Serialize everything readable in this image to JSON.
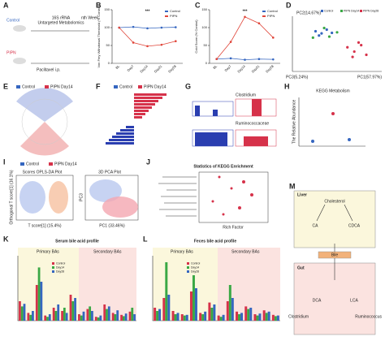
{
  "A": {
    "label": "A",
    "control": "Control",
    "pipn": "PIPN",
    "seq": "16S rRNA",
    "metab": "Untargeted Metabolomics",
    "week": "nth Week",
    "inj": "Paclitaxel i.p."
  },
  "B": {
    "label": "B",
    "ylabel": "Von Frey Withdrawal Threshold (% Control)",
    "categories": [
      "BL",
      "Day7",
      "Day14",
      "Day21",
      "Day28"
    ],
    "series": [
      {
        "name": "Control",
        "color": "#3566c0",
        "values": [
          100,
          102,
          98,
          100,
          101
        ]
      },
      {
        "name": "PIPN",
        "color": "#e0463a",
        "values": [
          100,
          58,
          48,
          52,
          62
        ]
      }
    ],
    "ylim": [
      0,
      150
    ],
    "yticks": [
      0,
      50,
      100,
      150
    ],
    "annotation": "***"
  },
  "C": {
    "label": "C",
    "ylabel": "Cold Score (% Control)",
    "categories": [
      "BL",
      "Day7",
      "Day14",
      "Day21",
      "Day28"
    ],
    "series": [
      {
        "name": "Control",
        "color": "#3566c0",
        "values": [
          12,
          14,
          10,
          12,
          11
        ]
      },
      {
        "name": "PIPN",
        "color": "#e0463a",
        "values": [
          12,
          60,
          130,
          112,
          72
        ]
      }
    ],
    "ylim": [
      0,
      150
    ],
    "yticks": [
      0,
      50,
      100,
      150
    ],
    "annotation": "***"
  },
  "D": {
    "label": "D",
    "pc1": "PC1(57.97%)",
    "pc2": "PC2(14.67%)",
    "pc3": "PC3(5.24%)",
    "xlim": [
      0,
      10
    ],
    "ylim": [
      0,
      10
    ],
    "series": [
      {
        "name": "Control",
        "color": "#3566c0",
        "x": [
          2.5,
          3.2,
          3.8,
          4.4,
          2.9
        ],
        "y": [
          7.2,
          6.8,
          7.5,
          6.9,
          6.4
        ]
      },
      {
        "name": "PIPN Day14",
        "color": "#3aa845",
        "x": [
          3.5,
          4.1,
          5.0,
          2.2
        ],
        "y": [
          7.8,
          6.2,
          7.0,
          6.0
        ]
      },
      {
        "name": "PIPN Day28",
        "color": "#d6324a",
        "x": [
          6.2,
          7.0,
          7.8,
          8.4,
          6.8,
          7.5
        ],
        "y": [
          4.2,
          3.4,
          4.6,
          2.8,
          2.4,
          5.1
        ]
      }
    ]
  },
  "E": {
    "label": "E",
    "control": "Control",
    "pipn": "PIPN Day14"
  },
  "F": {
    "label": "F",
    "control": "Control",
    "pipn": "PIPN Day14"
  },
  "G": {
    "label": "G",
    "top": "Clostridium",
    "bottom": "Ruminococcaceae"
  },
  "H": {
    "label": "H",
    "title": "KEGG Metabolism",
    "ylabel": "The Relative Abundance"
  },
  "I": {
    "label": "I",
    "control": "Control",
    "pipn": "PIPN Day14",
    "t1": "Scores OPLS-DA Plot",
    "t2": "3D PCA Plot",
    "x1": "T score[1] (15.4%)",
    "y1": "Orthogonal T score[1] (16.1%)",
    "x2": "PC1 (33.46%)",
    "y2": "PC3"
  },
  "J": {
    "label": "J",
    "title": "Statistics of KEGG Enrichment",
    "xlabel": "Rich Factor"
  },
  "K": {
    "label": "K",
    "title": "Serum bile acid profile",
    "primary": "Primary BAs",
    "secondary": "Secondary BAs",
    "ylim": [
      0,
      100
    ],
    "series": [
      {
        "name": "Control",
        "color": "#d6324a",
        "values": [
          30,
          12,
          55,
          8,
          20,
          15,
          40,
          10,
          18,
          6,
          25,
          12,
          9,
          14
        ]
      },
      {
        "name": "Day14",
        "color": "#3aa845",
        "values": [
          22,
          9,
          82,
          6,
          15,
          20,
          30,
          8,
          22,
          5,
          18,
          10,
          7,
          20
        ]
      },
      {
        "name": "Day28",
        "color": "#3566c0",
        "values": [
          26,
          15,
          60,
          10,
          25,
          12,
          35,
          14,
          15,
          8,
          22,
          16,
          11,
          10
        ]
      }
    ]
  },
  "L": {
    "label": "L",
    "title": "Feces bile acid profile",
    "primary": "Primary BAs",
    "secondary": "Secondary BAs",
    "ylim": [
      0,
      100
    ],
    "series": [
      {
        "name": "Control",
        "color": "#d6324a",
        "values": [
          20,
          35,
          15,
          10,
          45,
          12,
          28,
          8,
          30,
          14,
          22,
          10,
          16,
          9
        ]
      },
      {
        "name": "Day14",
        "color": "#3aa845",
        "values": [
          15,
          90,
          10,
          8,
          70,
          10,
          20,
          6,
          55,
          10,
          18,
          8,
          12,
          7
        ]
      },
      {
        "name": "Day28",
        "color": "#3566c0",
        "values": [
          18,
          40,
          12,
          9,
          50,
          14,
          25,
          9,
          35,
          12,
          20,
          11,
          14,
          8
        ]
      }
    ]
  },
  "M": {
    "label": "M",
    "liver": "Liver",
    "gut": "Gut",
    "chol": "Cholesterol",
    "ca": "CA",
    "cdca": "CDCA",
    "bile": "Bile",
    "dca": "DCA",
    "lca": "LCA",
    "clos": "Clostridium",
    "rum": "Ruminococcus"
  }
}
